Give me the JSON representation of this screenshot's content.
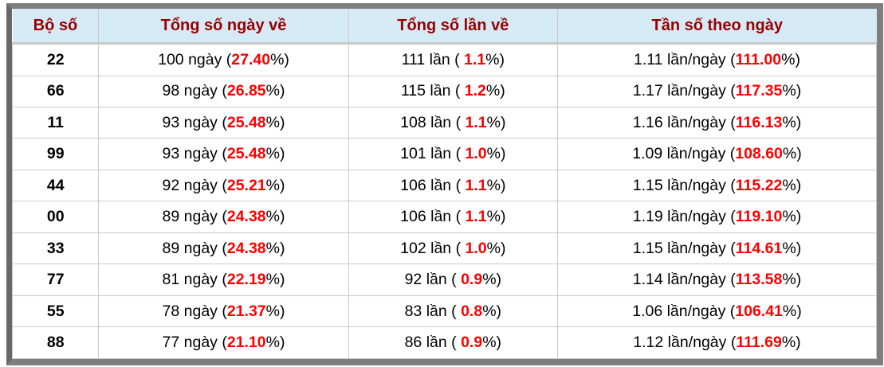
{
  "table": {
    "columns": [
      {
        "label": "Bộ số"
      },
      {
        "label": "Tổng số ngày về"
      },
      {
        "label": "Tổng số lần về"
      },
      {
        "label": "Tần số theo ngày"
      }
    ],
    "labels": {
      "days_unit": "ngày",
      "times_unit": "lần",
      "freq_unit": "lần/ngày",
      "open": "(",
      "open_spaced": "( ",
      "close": "%)"
    },
    "rows": [
      {
        "pair": "22",
        "days": "100",
        "days_pct": "27.40",
        "times": "111",
        "times_pct": "1.1",
        "freq": "1.11",
        "freq_pct": "111.00"
      },
      {
        "pair": "66",
        "days": "98",
        "days_pct": "26.85",
        "times": "115",
        "times_pct": "1.2",
        "freq": "1.17",
        "freq_pct": "117.35"
      },
      {
        "pair": "11",
        "days": "93",
        "days_pct": "25.48",
        "times": "108",
        "times_pct": "1.1",
        "freq": "1.16",
        "freq_pct": "116.13"
      },
      {
        "pair": "99",
        "days": "93",
        "days_pct": "25.48",
        "times": "101",
        "times_pct": "1.0",
        "freq": "1.09",
        "freq_pct": "108.60"
      },
      {
        "pair": "44",
        "days": "92",
        "days_pct": "25.21",
        "times": "106",
        "times_pct": "1.1",
        "freq": "1.15",
        "freq_pct": "115.22"
      },
      {
        "pair": "00",
        "days": "89",
        "days_pct": "24.38",
        "times": "106",
        "times_pct": "1.1",
        "freq": "1.19",
        "freq_pct": "119.10"
      },
      {
        "pair": "33",
        "days": "89",
        "days_pct": "24.38",
        "times": "102",
        "times_pct": "1.0",
        "freq": "1.15",
        "freq_pct": "114.61"
      },
      {
        "pair": "77",
        "days": "81",
        "days_pct": "22.19",
        "times": "92",
        "times_pct": "0.9",
        "freq": "1.14",
        "freq_pct": "113.58"
      },
      {
        "pair": "55",
        "days": "78",
        "days_pct": "21.37",
        "times": "83",
        "times_pct": "0.8",
        "freq": "1.06",
        "freq_pct": "106.41"
      },
      {
        "pair": "88",
        "days": "77",
        "days_pct": "21.10",
        "times": "86",
        "times_pct": "0.9",
        "freq": "1.12",
        "freq_pct": "111.69"
      }
    ],
    "colors": {
      "header_bg": "#d6eaf5",
      "header_text": "#990000",
      "highlight_red": "#ff0000",
      "frame_gray": "#7e7e7e",
      "cell_border": "#c9c9c9"
    }
  }
}
